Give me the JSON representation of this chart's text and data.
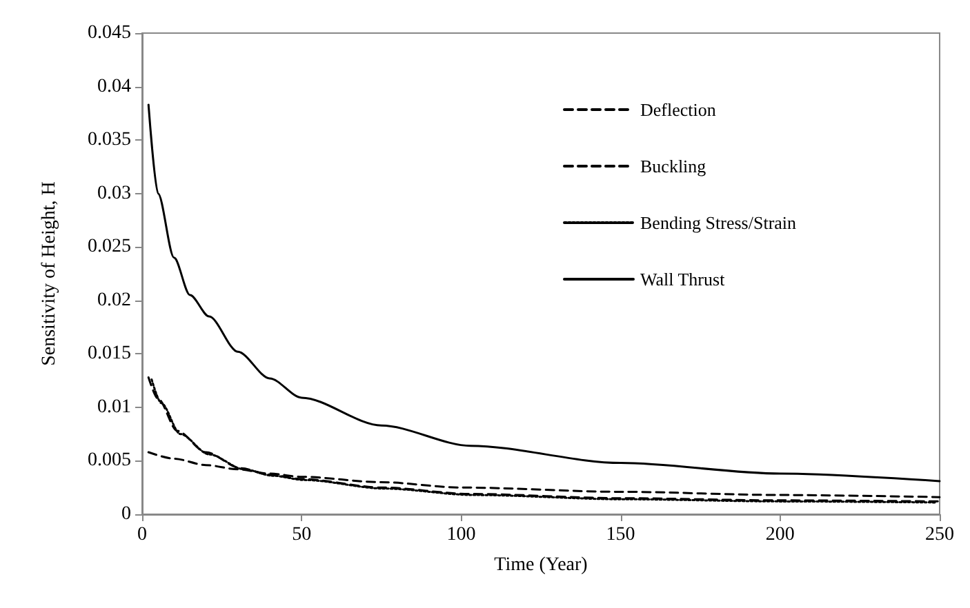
{
  "chart_data": {
    "type": "line",
    "xlabel": "Time (Year)",
    "ylabel": "Sensitivity of Height, H",
    "xlim": [
      0,
      250
    ],
    "xticks": [
      0,
      50,
      100,
      150,
      200,
      250
    ],
    "ylim": [
      0,
      0.045
    ],
    "yticks": [
      0,
      0.005,
      0.01,
      0.015,
      0.02,
      0.025,
      0.03,
      0.035,
      0.04,
      0.045
    ],
    "grid": false,
    "legend": "top right",
    "marker": "none",
    "series": [
      {
        "name": "Deflection",
        "color": "#000000",
        "line_style": "dashed",
        "x": [
          2,
          10,
          20,
          30,
          40,
          50,
          75,
          100,
          150,
          200,
          250
        ],
        "values": [
          0.0058,
          0.0052,
          0.0046,
          0.0042,
          0.0038,
          0.0035,
          0.003,
          0.0025,
          0.0021,
          0.0018,
          0.0016
        ]
      },
      {
        "name": "Buckling",
        "color": "#000000",
        "line_style": "dashed",
        "x": [
          2,
          5,
          11,
          20,
          31,
          40,
          50,
          75,
          103,
          150,
          200,
          250
        ],
        "values": [
          0.0128,
          0.0108,
          0.0078,
          0.0058,
          0.0043,
          0.0037,
          0.0033,
          0.0025,
          0.0019,
          0.0015,
          0.0013,
          0.0012
        ]
      },
      {
        "name": "Bending Stress/Strain",
        "color": "#000000",
        "line_style": "dotted",
        "x": [
          3,
          6,
          12,
          21,
          32,
          41,
          51,
          76,
          104,
          151,
          201,
          249
        ],
        "values": [
          0.0126,
          0.0104,
          0.0075,
          0.0056,
          0.0042,
          0.0036,
          0.0032,
          0.0024,
          0.0018,
          0.0014,
          0.0012,
          0.0011
        ]
      },
      {
        "name": "Wall Thrust",
        "color": "#000000",
        "line_style": "solid",
        "x": [
          2,
          5,
          10,
          15,
          21,
          30,
          40,
          50,
          75,
          103,
          150,
          200,
          250
        ],
        "values": [
          0.0383,
          0.03,
          0.024,
          0.0205,
          0.0185,
          0.0152,
          0.0127,
          0.0109,
          0.0083,
          0.0064,
          0.0048,
          0.0038,
          0.0031
        ]
      }
    ]
  }
}
